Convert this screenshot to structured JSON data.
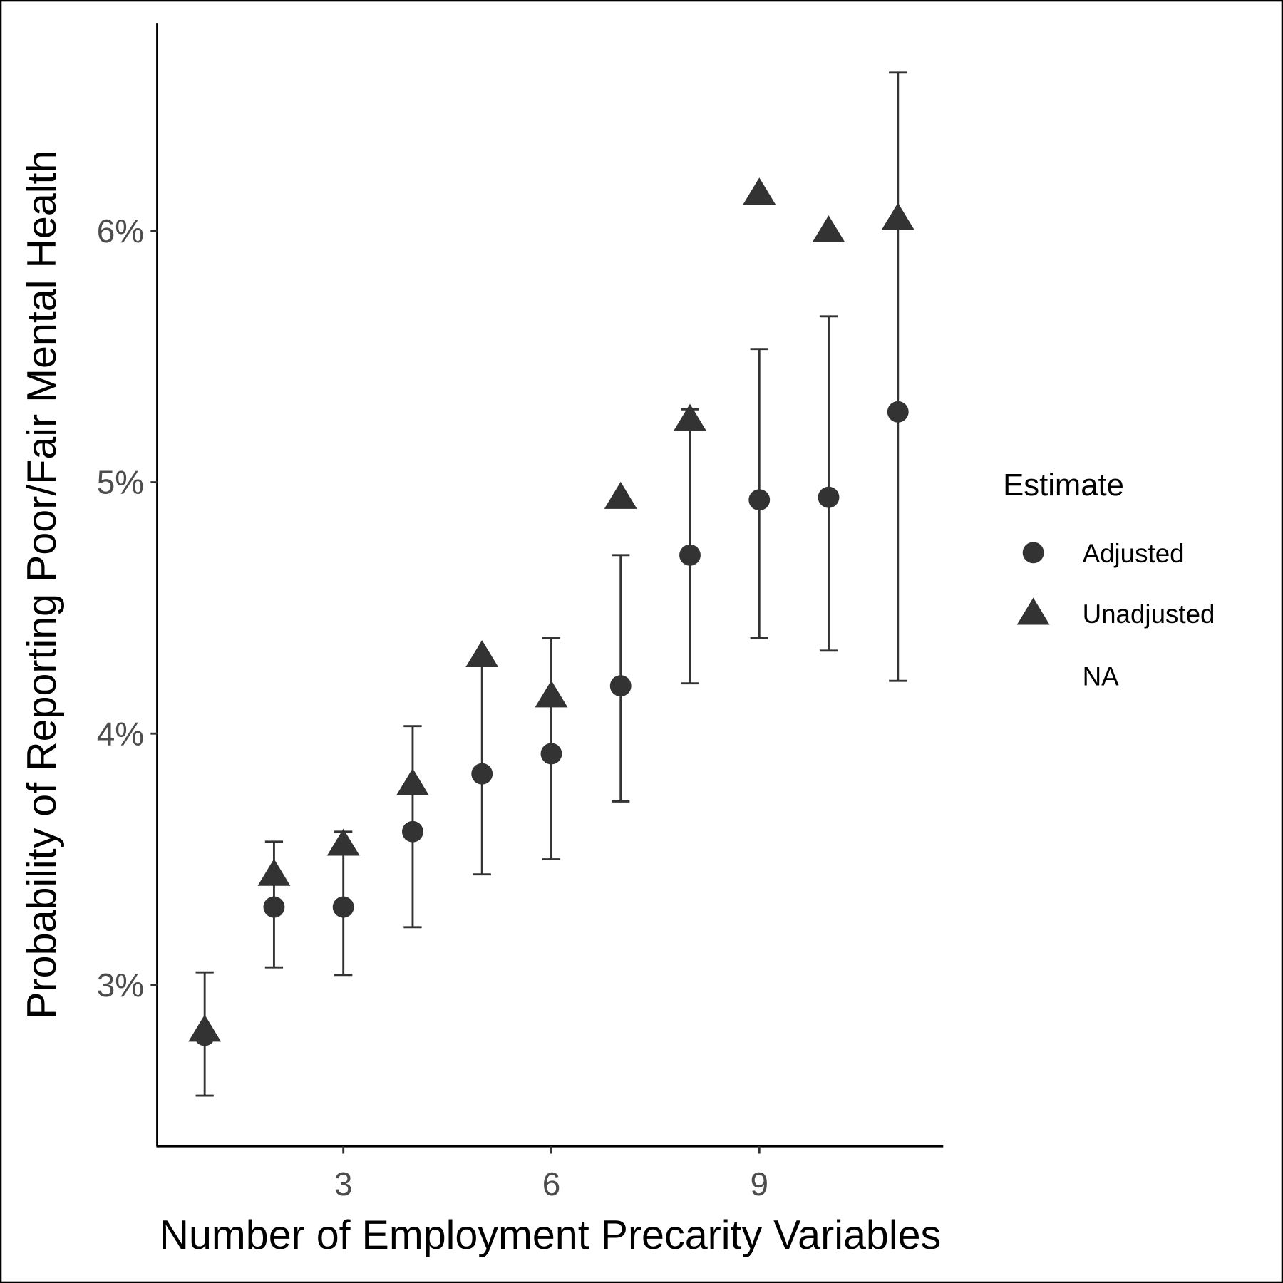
{
  "chart_data": {
    "type": "scatter",
    "title": "",
    "xlabel": "Number of Employment Precarity Variables",
    "ylabel": "Probability of Reporting Poor/Fair Mental Health",
    "xlim": [
      0.3,
      11.6
    ],
    "ylim": [
      2.35,
      6.85
    ],
    "x_ticks": [
      3,
      6,
      9
    ],
    "x_tick_labels": [
      "3",
      "6",
      "9"
    ],
    "y_ticks": [
      3,
      4,
      5,
      6
    ],
    "y_tick_labels": [
      "3%",
      "4%",
      "5%",
      "6%"
    ],
    "grid": false,
    "legend": {
      "title": "Estimate",
      "position": "right",
      "entries": [
        "Adjusted",
        "Unadjusted",
        "NA"
      ]
    },
    "x": [
      1,
      2,
      3,
      4,
      5,
      6,
      7,
      8,
      9,
      10,
      11
    ],
    "series": [
      {
        "name": "Adjusted",
        "marker": "circle",
        "values": [
          2.8,
          3.31,
          3.31,
          3.61,
          3.84,
          3.92,
          4.19,
          4.71,
          4.93,
          4.94,
          5.28
        ],
        "ci_lower": [
          2.56,
          3.07,
          3.04,
          3.23,
          3.44,
          3.5,
          3.73,
          4.2,
          4.38,
          4.33,
          4.21
        ],
        "ci_upper": [
          3.05,
          3.57,
          3.61,
          4.03,
          4.31,
          4.38,
          4.71,
          5.29,
          5.53,
          5.66,
          6.63
        ]
      },
      {
        "name": "Unadjusted",
        "marker": "triangle",
        "values": [
          2.82,
          3.44,
          3.56,
          3.8,
          4.31,
          4.15,
          4.94,
          5.25,
          6.15,
          6.0,
          6.05
        ]
      }
    ],
    "color": "#333333"
  }
}
